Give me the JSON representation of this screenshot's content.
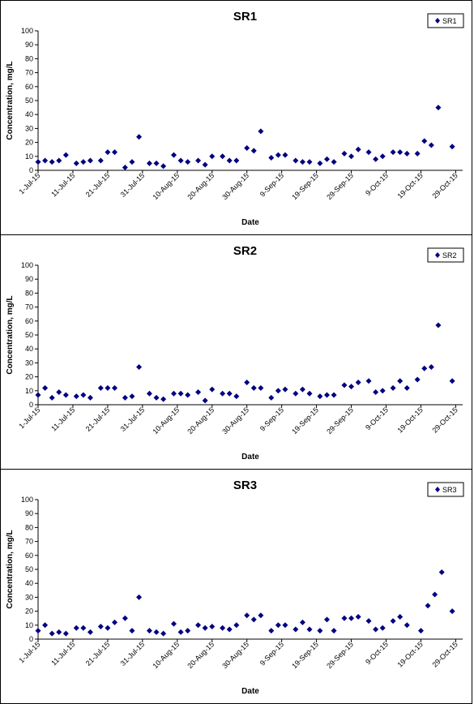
{
  "colors": {
    "marker": "#000080",
    "axis": "#000000",
    "panel_border": "#000000"
  },
  "chart_data": [
    {
      "type": "scatter",
      "title": "SR1",
      "xlabel": "Date",
      "ylabel": "Concentration, mg/L",
      "ylim": [
        0,
        100
      ],
      "yticks": [
        0,
        10,
        20,
        30,
        40,
        50,
        60,
        70,
        80,
        90,
        100
      ],
      "xlim": [
        "2015-07-01",
        "2015-10-31"
      ],
      "xticks": [
        "1-Jul-15",
        "11-Jul-15",
        "21-Jul-15",
        "31-Jul-15",
        "10-Aug-15",
        "20-Aug-15",
        "30-Aug-15",
        "9-Sep-15",
        "19-Sep-15",
        "29-Sep-15",
        "9-Oct-15",
        "19-Oct-15",
        "29-Oct-15"
      ],
      "legend": "top-right",
      "grid": false,
      "series": [
        {
          "name": "SR1",
          "points": [
            [
              "2015-07-01",
              6
            ],
            [
              "2015-07-03",
              7
            ],
            [
              "2015-07-05",
              6
            ],
            [
              "2015-07-07",
              7
            ],
            [
              "2015-07-09",
              11
            ],
            [
              "2015-07-12",
              5
            ],
            [
              "2015-07-14",
              6
            ],
            [
              "2015-07-16",
              7
            ],
            [
              "2015-07-19",
              7
            ],
            [
              "2015-07-21",
              13
            ],
            [
              "2015-07-23",
              13
            ],
            [
              "2015-07-26",
              2
            ],
            [
              "2015-07-28",
              6
            ],
            [
              "2015-07-30",
              24
            ],
            [
              "2015-08-02",
              5
            ],
            [
              "2015-08-04",
              5
            ],
            [
              "2015-08-06",
              3
            ],
            [
              "2015-08-09",
              11
            ],
            [
              "2015-08-11",
              7
            ],
            [
              "2015-08-13",
              6
            ],
            [
              "2015-08-16",
              7
            ],
            [
              "2015-08-18",
              4
            ],
            [
              "2015-08-20",
              10
            ],
            [
              "2015-08-23",
              10
            ],
            [
              "2015-08-25",
              7
            ],
            [
              "2015-08-27",
              7
            ],
            [
              "2015-08-30",
              16
            ],
            [
              "2015-09-01",
              14
            ],
            [
              "2015-09-03",
              28
            ],
            [
              "2015-09-06",
              9
            ],
            [
              "2015-09-08",
              11
            ],
            [
              "2015-09-10",
              11
            ],
            [
              "2015-09-13",
              7
            ],
            [
              "2015-09-15",
              6
            ],
            [
              "2015-09-17",
              6
            ],
            [
              "2015-09-20",
              5
            ],
            [
              "2015-09-22",
              8
            ],
            [
              "2015-09-24",
              6
            ],
            [
              "2015-09-27",
              12
            ],
            [
              "2015-09-29",
              10
            ],
            [
              "2015-10-01",
              15
            ],
            [
              "2015-10-04",
              13
            ],
            [
              "2015-10-06",
              8
            ],
            [
              "2015-10-08",
              10
            ],
            [
              "2015-10-11",
              13
            ],
            [
              "2015-10-13",
              13
            ],
            [
              "2015-10-15",
              12
            ],
            [
              "2015-10-18",
              12
            ],
            [
              "2015-10-20",
              21
            ],
            [
              "2015-10-22",
              18
            ],
            [
              "2015-10-24",
              45
            ],
            [
              "2015-10-28",
              17
            ]
          ]
        }
      ]
    },
    {
      "type": "scatter",
      "title": "SR2",
      "xlabel": "Date",
      "ylabel": "Concentration, mg/L",
      "ylim": [
        0,
        100
      ],
      "yticks": [
        0,
        10,
        20,
        30,
        40,
        50,
        60,
        70,
        80,
        90,
        100
      ],
      "xlim": [
        "2015-07-01",
        "2015-10-31"
      ],
      "xticks": [
        "1-Jul-15",
        "11-Jul-15",
        "21-Jul-15",
        "31-Jul-15",
        "10-Aug-15",
        "20-Aug-15",
        "30-Aug-15",
        "9-Sep-15",
        "19-Sep-15",
        "29-Sep-15",
        "9-Oct-15",
        "19-Oct-15",
        "29-Oct-15"
      ],
      "legend": "top-right",
      "grid": false,
      "series": [
        {
          "name": "SR2",
          "points": [
            [
              "2015-07-01",
              7
            ],
            [
              "2015-07-03",
              12
            ],
            [
              "2015-07-05",
              5
            ],
            [
              "2015-07-07",
              9
            ],
            [
              "2015-07-09",
              7
            ],
            [
              "2015-07-12",
              6
            ],
            [
              "2015-07-14",
              7
            ],
            [
              "2015-07-16",
              5
            ],
            [
              "2015-07-19",
              12
            ],
            [
              "2015-07-21",
              12
            ],
            [
              "2015-07-23",
              12
            ],
            [
              "2015-07-26",
              5
            ],
            [
              "2015-07-28",
              6
            ],
            [
              "2015-07-30",
              27
            ],
            [
              "2015-08-02",
              8
            ],
            [
              "2015-08-04",
              5
            ],
            [
              "2015-08-06",
              4
            ],
            [
              "2015-08-09",
              8
            ],
            [
              "2015-08-11",
              8
            ],
            [
              "2015-08-13",
              7
            ],
            [
              "2015-08-16",
              9
            ],
            [
              "2015-08-18",
              3
            ],
            [
              "2015-08-20",
              11
            ],
            [
              "2015-08-23",
              8
            ],
            [
              "2015-08-25",
              8
            ],
            [
              "2015-08-27",
              6
            ],
            [
              "2015-08-30",
              16
            ],
            [
              "2015-09-01",
              12
            ],
            [
              "2015-09-03",
              12
            ],
            [
              "2015-09-06",
              5
            ],
            [
              "2015-09-08",
              10
            ],
            [
              "2015-09-10",
              11
            ],
            [
              "2015-09-13",
              8
            ],
            [
              "2015-09-15",
              11
            ],
            [
              "2015-09-17",
              8
            ],
            [
              "2015-09-20",
              6
            ],
            [
              "2015-09-22",
              7
            ],
            [
              "2015-09-24",
              7
            ],
            [
              "2015-09-27",
              14
            ],
            [
              "2015-09-29",
              13
            ],
            [
              "2015-10-01",
              16
            ],
            [
              "2015-10-04",
              17
            ],
            [
              "2015-10-06",
              9
            ],
            [
              "2015-10-08",
              10
            ],
            [
              "2015-10-11",
              12
            ],
            [
              "2015-10-13",
              17
            ],
            [
              "2015-10-15",
              12
            ],
            [
              "2015-10-18",
              18
            ],
            [
              "2015-10-20",
              26
            ],
            [
              "2015-10-22",
              27
            ],
            [
              "2015-10-24",
              57
            ],
            [
              "2015-10-28",
              17
            ]
          ]
        }
      ]
    },
    {
      "type": "scatter",
      "title": "SR3",
      "xlabel": "Date",
      "ylabel": "Concentration, mg/L",
      "ylim": [
        0,
        100
      ],
      "yticks": [
        0,
        10,
        20,
        30,
        40,
        50,
        60,
        70,
        80,
        90,
        100
      ],
      "xlim": [
        "2015-07-01",
        "2015-10-31"
      ],
      "xticks": [
        "1-Jul-15",
        "11-Jul-15",
        "21-Jul-15",
        "31-Jul-15",
        "10-Aug-15",
        "20-Aug-15",
        "30-Aug-15",
        "9-Sep-15",
        "19-Sep-15",
        "29-Sep-15",
        "9-Oct-15",
        "19-Oct-15",
        "29-Oct-15"
      ],
      "legend": "top-right",
      "grid": false,
      "series": [
        {
          "name": "SR3",
          "points": [
            [
              "2015-07-01",
              6
            ],
            [
              "2015-07-03",
              10
            ],
            [
              "2015-07-05",
              4
            ],
            [
              "2015-07-07",
              5
            ],
            [
              "2015-07-09",
              4
            ],
            [
              "2015-07-12",
              8
            ],
            [
              "2015-07-14",
              8
            ],
            [
              "2015-07-16",
              5
            ],
            [
              "2015-07-19",
              9
            ],
            [
              "2015-07-21",
              8
            ],
            [
              "2015-07-23",
              12
            ],
            [
              "2015-07-26",
              15
            ],
            [
              "2015-07-28",
              6
            ],
            [
              "2015-07-30",
              30
            ],
            [
              "2015-08-02",
              6
            ],
            [
              "2015-08-04",
              5
            ],
            [
              "2015-08-06",
              4
            ],
            [
              "2015-08-09",
              11
            ],
            [
              "2015-08-11",
              5
            ],
            [
              "2015-08-13",
              6
            ],
            [
              "2015-08-16",
              10
            ],
            [
              "2015-08-18",
              8
            ],
            [
              "2015-08-20",
              9
            ],
            [
              "2015-08-23",
              8
            ],
            [
              "2015-08-25",
              7
            ],
            [
              "2015-08-27",
              10
            ],
            [
              "2015-08-30",
              17
            ],
            [
              "2015-09-01",
              14
            ],
            [
              "2015-09-03",
              17
            ],
            [
              "2015-09-06",
              6
            ],
            [
              "2015-09-08",
              10
            ],
            [
              "2015-09-10",
              10
            ],
            [
              "2015-09-13",
              7
            ],
            [
              "2015-09-15",
              12
            ],
            [
              "2015-09-17",
              7
            ],
            [
              "2015-09-20",
              6
            ],
            [
              "2015-09-22",
              14
            ],
            [
              "2015-09-24",
              6
            ],
            [
              "2015-09-27",
              15
            ],
            [
              "2015-09-29",
              15
            ],
            [
              "2015-10-01",
              16
            ],
            [
              "2015-10-04",
              13
            ],
            [
              "2015-10-06",
              7
            ],
            [
              "2015-10-08",
              8
            ],
            [
              "2015-10-11",
              13
            ],
            [
              "2015-10-13",
              16
            ],
            [
              "2015-10-15",
              10
            ],
            [
              "2015-10-19",
              6
            ],
            [
              "2015-10-21",
              24
            ],
            [
              "2015-10-23",
              32
            ],
            [
              "2015-10-25",
              48
            ],
            [
              "2015-10-28",
              20
            ]
          ]
        }
      ]
    }
  ]
}
